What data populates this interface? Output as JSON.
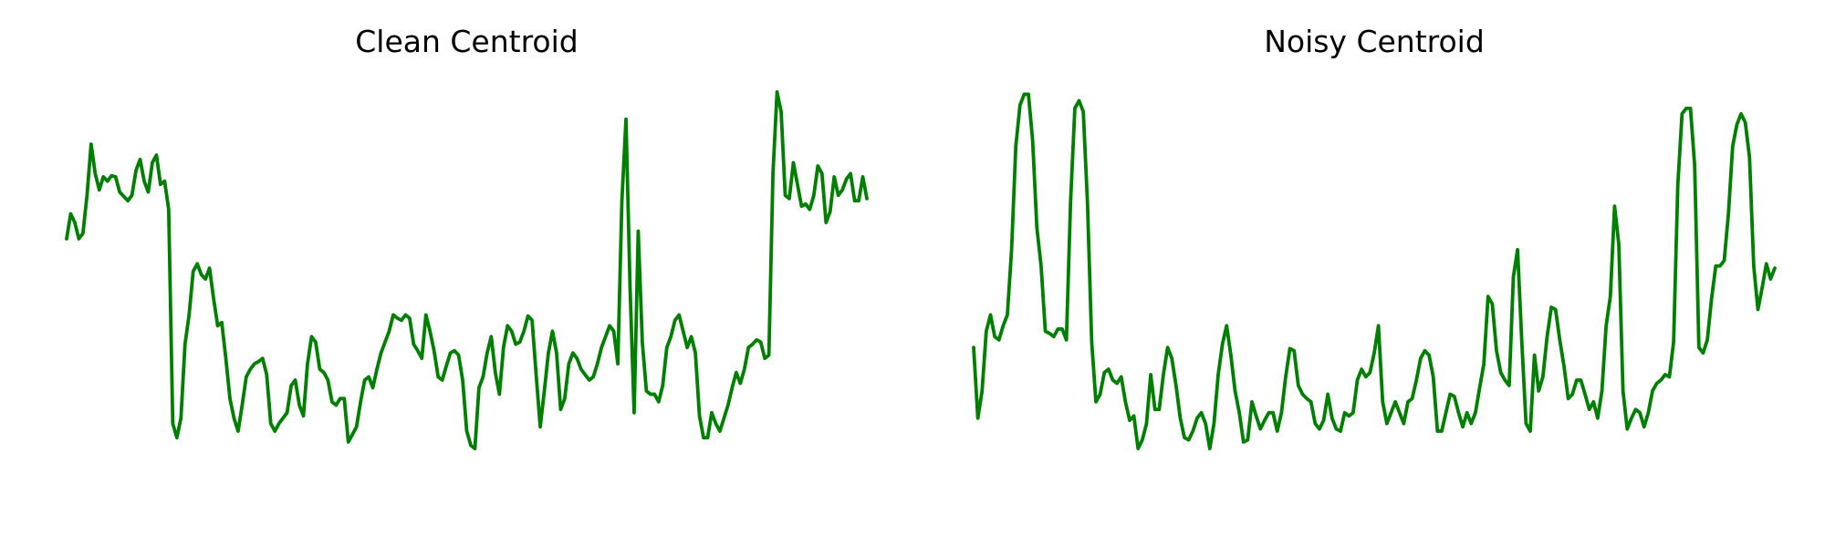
{
  "colors": {
    "line": "#008000",
    "background": "#ffffff"
  },
  "chart_data": [
    {
      "type": "line",
      "title": "Clean Centroid",
      "xlabel": "",
      "ylabel": "",
      "axes_visible": false,
      "grid": false,
      "ylim": [
        -1.85,
        2.05
      ],
      "series": [
        {
          "values": [
            0.65,
            0.88,
            0.8,
            0.65,
            0.7,
            1.05,
            1.52,
            1.25,
            1.1,
            1.22,
            1.18,
            1.23,
            1.22,
            1.08,
            1.04,
            1.0,
            1.05,
            1.28,
            1.38,
            1.18,
            1.08,
            1.35,
            1.42,
            1.15,
            1.18,
            0.92,
            -1.05,
            -1.18,
            -1.0,
            -0.32,
            -0.05,
            0.35,
            0.42,
            0.32,
            0.28,
            0.38,
            0.1,
            -0.15,
            -0.12,
            -0.45,
            -0.82,
            -1.0,
            -1.12,
            -0.88,
            -0.62,
            -0.55,
            -0.5,
            -0.48,
            -0.45,
            -0.6,
            -1.05,
            -1.12,
            -1.05,
            -1.0,
            -0.95,
            -0.7,
            -0.65,
            -0.88,
            -0.98,
            -0.5,
            -0.25,
            -0.3,
            -0.55,
            -0.58,
            -0.65,
            -0.85,
            -0.88,
            -0.82,
            -0.82,
            -1.22,
            -1.15,
            -1.08,
            -0.85,
            -0.65,
            -0.62,
            -0.72,
            -0.55,
            -0.4,
            -0.3,
            -0.2,
            -0.05,
            -0.08,
            -0.1,
            -0.05,
            -0.08,
            -0.32,
            -0.38,
            -0.45,
            -0.05,
            -0.2,
            -0.38,
            -0.62,
            -0.65,
            -0.52,
            -0.4,
            -0.38,
            -0.42,
            -0.65,
            -1.12,
            -1.25,
            -1.28,
            -0.72,
            -0.62,
            -0.4,
            -0.25,
            -0.58,
            -0.78,
            -0.35,
            -0.15,
            -0.2,
            -0.32,
            -0.3,
            -0.2,
            -0.06,
            -0.1,
            -0.6,
            -1.08,
            -0.75,
            -0.4,
            -0.2,
            -0.4,
            -0.92,
            -0.82,
            -0.5,
            -0.4,
            -0.45,
            -0.55,
            -0.6,
            -0.65,
            -0.62,
            -0.5,
            -0.35,
            -0.25,
            -0.15,
            -0.2,
            -0.5,
            1.0,
            1.75,
            0.2,
            -0.95,
            0.72,
            -0.3,
            -0.75,
            -0.78,
            -0.78,
            -0.85,
            -0.7,
            -0.35,
            -0.25,
            -0.1,
            -0.05,
            -0.2,
            -0.35,
            -0.25,
            -0.4,
            -0.98,
            -1.18,
            -1.18,
            -0.95,
            -1.05,
            -1.12,
            -1.0,
            -0.88,
            -0.72,
            -0.58,
            -0.68,
            -0.55,
            -0.35,
            -0.32,
            -0.28,
            -0.3,
            -0.45,
            -0.42,
            1.25,
            2.0,
            1.82,
            1.05,
            1.02,
            1.35,
            1.15,
            0.95,
            0.97,
            0.92,
            1.05,
            1.32,
            1.25,
            0.8,
            0.9,
            1.22,
            1.05,
            1.1,
            1.2,
            1.25,
            1.0,
            1.0,
            1.22,
            1.02
          ]
        }
      ]
    },
    {
      "type": "line",
      "title": "Noisy Centroid",
      "xlabel": "",
      "ylabel": "",
      "axes_visible": false,
      "grid": false,
      "ylim": [
        -1.85,
        2.05
      ],
      "series": [
        {
          "values": [
            -0.35,
            -1.0,
            -0.75,
            -0.2,
            -0.05,
            -0.25,
            -0.28,
            -0.15,
            -0.05,
            0.55,
            1.5,
            1.88,
            1.98,
            1.98,
            1.55,
            0.75,
            0.4,
            -0.2,
            -0.22,
            -0.25,
            -0.18,
            -0.18,
            -0.28,
            1.0,
            1.85,
            1.92,
            1.82,
            0.98,
            -0.3,
            -0.85,
            -0.78,
            -0.58,
            -0.55,
            -0.65,
            -0.68,
            -0.62,
            -0.85,
            -1.02,
            -0.98,
            -1.28,
            -1.2,
            -1.05,
            -0.6,
            -0.92,
            -0.92,
            -0.6,
            -0.35,
            -0.45,
            -0.7,
            -1.0,
            -1.18,
            -1.2,
            -1.12,
            -1.0,
            -0.95,
            -1.05,
            -1.28,
            -1.05,
            -0.6,
            -0.32,
            -0.15,
            -0.42,
            -0.75,
            -0.95,
            -1.22,
            -1.2,
            -0.85,
            -0.98,
            -1.1,
            -1.02,
            -0.95,
            -0.95,
            -1.12,
            -0.95,
            -0.62,
            -0.36,
            -0.38,
            -0.7,
            -0.78,
            -0.82,
            -0.85,
            -1.05,
            -1.1,
            -1.02,
            -0.78,
            -1.0,
            -1.1,
            -1.12,
            -0.95,
            -0.98,
            -0.95,
            -0.65,
            -0.55,
            -0.62,
            -0.58,
            -0.4,
            -0.15,
            -0.85,
            -1.05,
            -0.95,
            -0.85,
            -0.95,
            -1.05,
            -0.85,
            -0.82,
            -0.65,
            -0.45,
            -0.38,
            -0.42,
            -0.62,
            -1.12,
            -1.12,
            -0.95,
            -0.78,
            -0.8,
            -0.95,
            -1.08,
            -0.95,
            -1.05,
            -0.95,
            -0.72,
            -0.5,
            0.12,
            0.05,
            -0.38,
            -0.58,
            -0.65,
            -0.7,
            0.3,
            0.55,
            -0.3,
            -1.05,
            -1.12,
            -0.42,
            -0.75,
            -0.62,
            -0.25,
            0.02,
            0.0,
            -0.28,
            -0.52,
            -0.82,
            -0.78,
            -0.65,
            -0.65,
            -0.78,
            -0.92,
            -0.85,
            -1.0,
            -0.75,
            -0.15,
            0.12,
            0.95,
            0.6,
            -0.75,
            -1.1,
            -1.0,
            -0.92,
            -0.95,
            -1.08,
            -0.95,
            -0.75,
            -0.68,
            -0.65,
            -0.6,
            -0.62,
            -0.3,
            1.15,
            1.8,
            1.85,
            1.85,
            1.32,
            -0.35,
            -0.4,
            -0.28,
            0.1,
            0.4,
            0.4,
            0.45,
            0.88,
            1.5,
            1.7,
            1.8,
            1.72,
            1.4,
            0.4,
            0.0,
            0.2,
            0.42,
            0.28,
            0.38
          ]
        }
      ]
    }
  ]
}
